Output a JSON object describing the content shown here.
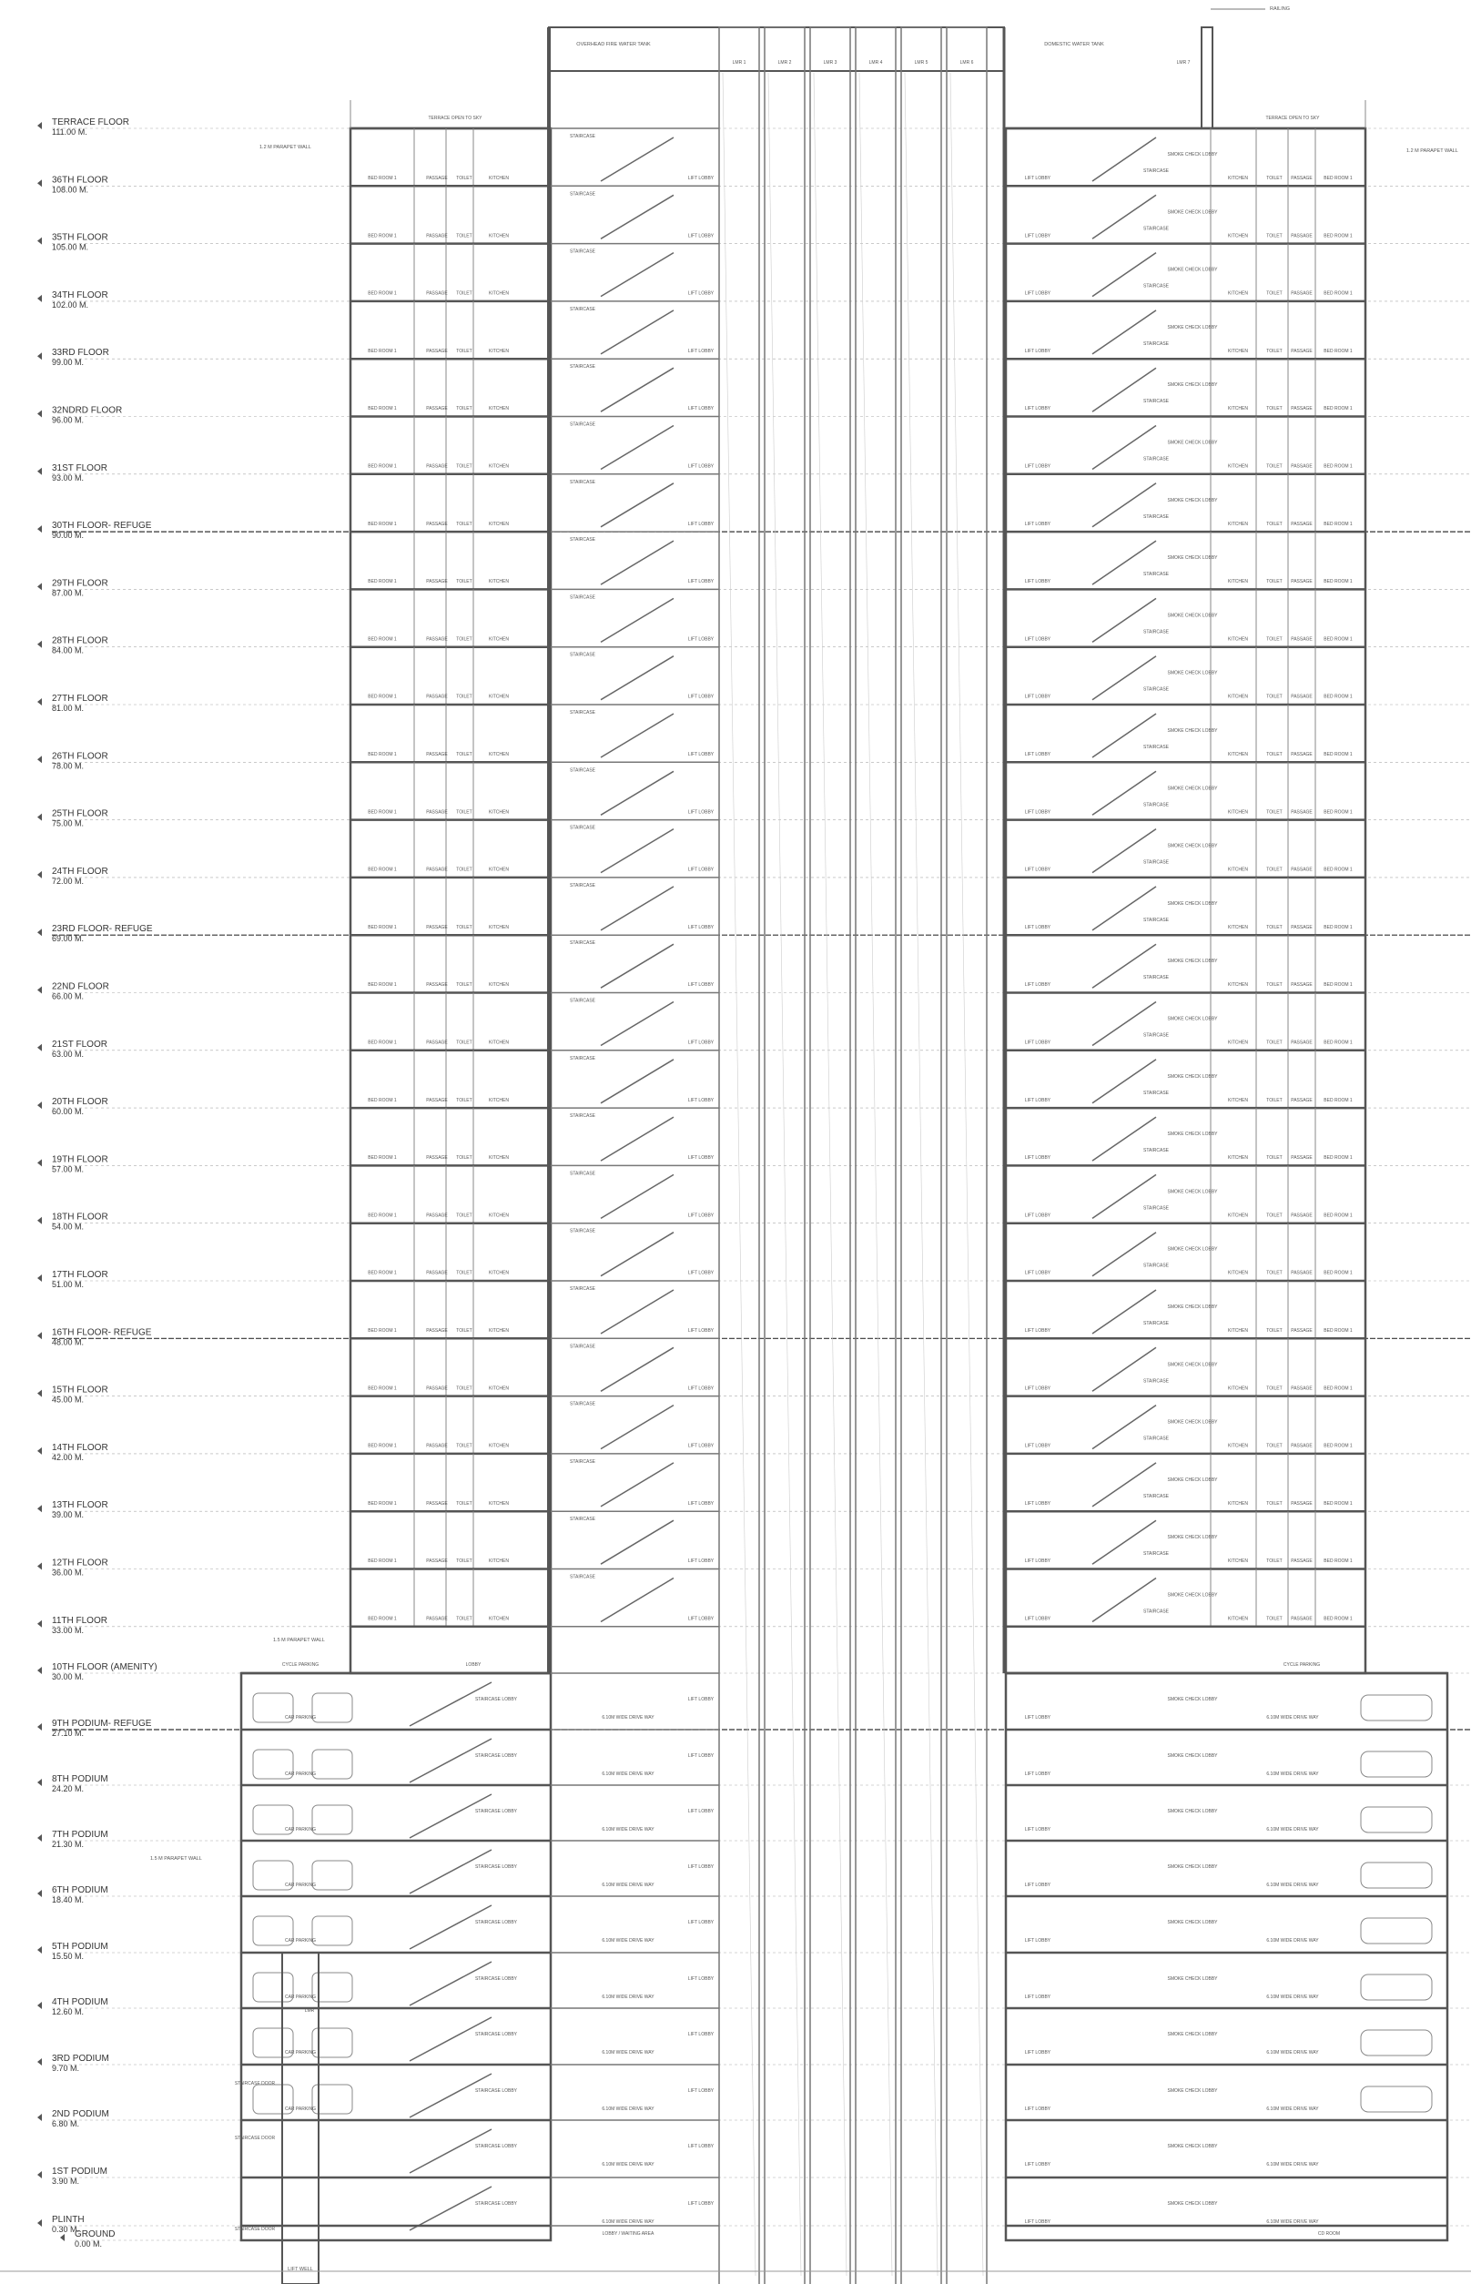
{
  "levels": [
    {
      "name": "TERRACE FLOOR",
      "elev": "111.00 M."
    },
    {
      "name": "36TH FLOOR",
      "elev": "108.00 M."
    },
    {
      "name": "35TH FLOOR",
      "elev": "105.00 M."
    },
    {
      "name": "34TH FLOOR",
      "elev": "102.00 M."
    },
    {
      "name": "33RD FLOOR",
      "elev": "99.00 M."
    },
    {
      "name": "32NDRD FLOOR",
      "elev": "96.00 M."
    },
    {
      "name": "31ST FLOOR",
      "elev": "93.00 M."
    },
    {
      "name": "30TH FLOOR- REFUGE",
      "elev": "90.00 M.",
      "refuge": true
    },
    {
      "name": "29TH FLOOR",
      "elev": "87.00 M."
    },
    {
      "name": "28TH FLOOR",
      "elev": "84.00 M."
    },
    {
      "name": "27TH FLOOR",
      "elev": "81.00 M."
    },
    {
      "name": "26TH FLOOR",
      "elev": "78.00 M."
    },
    {
      "name": "25TH FLOOR",
      "elev": "75.00 M."
    },
    {
      "name": "24TH FLOOR",
      "elev": "72.00 M."
    },
    {
      "name": "23RD FLOOR- REFUGE",
      "elev": "69.00 M.",
      "refuge": true
    },
    {
      "name": "22ND FLOOR",
      "elev": "66.00 M."
    },
    {
      "name": "21ST FLOOR",
      "elev": "63.00 M."
    },
    {
      "name": "20TH FLOOR",
      "elev": "60.00 M."
    },
    {
      "name": "19TH FLOOR",
      "elev": "57.00 M."
    },
    {
      "name": "18TH FLOOR",
      "elev": "54.00 M."
    },
    {
      "name": "17TH FLOOR",
      "elev": "51.00 M."
    },
    {
      "name": "16TH FLOOR- REFUGE",
      "elev": "48.00 M.",
      "refuge": true
    },
    {
      "name": "15TH FLOOR",
      "elev": "45.00 M."
    },
    {
      "name": "14TH FLOOR",
      "elev": "42.00 M."
    },
    {
      "name": "13TH FLOOR",
      "elev": "39.00 M."
    },
    {
      "name": "12TH FLOOR",
      "elev": "36.00 M."
    },
    {
      "name": "11TH FLOOR",
      "elev": "33.00 M."
    },
    {
      "name": "10TH FLOOR (AMENITY)",
      "elev": "30.00 M."
    },
    {
      "name": "9TH PODIUM- REFUGE",
      "elev": "27.10 M.",
      "refuge": true
    },
    {
      "name": "8TH PODIUM",
      "elev": "24.20 M."
    },
    {
      "name": "7TH PODIUM",
      "elev": "21.30 M."
    },
    {
      "name": "6TH PODIUM",
      "elev": "18.40 M."
    },
    {
      "name": "5TH PODIUM",
      "elev": "15.50 M."
    },
    {
      "name": "4TH PODIUM",
      "elev": "12.60 M."
    },
    {
      "name": "3RD PODIUM",
      "elev": "9.70 M."
    },
    {
      "name": "2ND PODIUM",
      "elev": "6.80 M."
    },
    {
      "name": "1ST PODIUM",
      "elev": "3.90 M."
    },
    {
      "name": "PLINTH",
      "elev": "0.30 M."
    },
    {
      "name": "GROUND",
      "elev": "0.00 M."
    }
  ],
  "room_labels": {
    "bedroom": "BED ROOM 1",
    "passage": "PASSAGE",
    "toilet": "TOILET",
    "kitchen": "KITCHEN",
    "staircase": "STAIRCASE",
    "lift_lobby": "LIFT LOBBY",
    "lift_well": "LIFT WELL",
    "smoke_check_lobby": "SMOKE CHECK LOBBY",
    "terrace": "TERRACE OPEN TO SKY",
    "drive_way": "6.10M WIDE DRIVE WAY",
    "car_parking": "CAR PARKING",
    "cycle_parking": "CYCLE PARKING",
    "staircase_lobby": "STAIRCASE LOBBY",
    "lobby": "LOBBY",
    "entrance_lobby": "LOBBY / WAITING AREA",
    "lmr": "LMR",
    "cd_room": "CD ROOM",
    "staircase_door": "STAIRCASE DOOR"
  },
  "annotations": {
    "railing": "RAILING",
    "parapet_upper": "1.2 M PARAPET WALL",
    "parapet_podium": "1.5 M PARAPET WALL",
    "lift_machine_room": "LMR",
    "lift_labels": [
      "LMR 1",
      "LMR 2",
      "LMR 3",
      "LMR 4",
      "LMR 5",
      "LMR 6",
      "LMR 7"
    ],
    "tank_left": "OVERHEAD FIRE WATER TANK",
    "tank_right": "DOMESTIC WATER TANK"
  }
}
